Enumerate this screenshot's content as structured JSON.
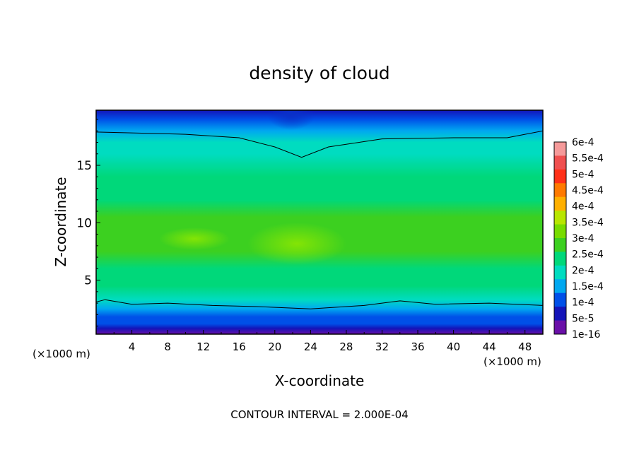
{
  "chart_data": {
    "type": "heatmap",
    "title": "density of cloud",
    "xlabel": "X-coordinate",
    "ylabel": "Z-coordinate",
    "x_unit_left": "(×1000 m)",
    "x_unit_right": "(×1000 m)",
    "footer": "CONTOUR INTERVAL = 2.000E-04",
    "xlim": [
      0,
      50
    ],
    "ylim": [
      0.3,
      19.8
    ],
    "x_ticks": [
      "4",
      "8",
      "12",
      "16",
      "20",
      "24",
      "28",
      "32",
      "36",
      "40",
      "44",
      "48"
    ],
    "y_ticks": [
      "5",
      "10",
      "15"
    ],
    "colorbar": {
      "labels": [
        "6e-4",
        "5.5e-4",
        "5e-4",
        "4.5e-4",
        "4e-4",
        "3.5e-4",
        "3e-4",
        "2.5e-4",
        "2e-4",
        "1.5e-4",
        "1e-4",
        "5e-5",
        "1e-16"
      ],
      "colors": [
        "#f59a9a",
        "#f05050",
        "#ff3018",
        "#ff7a00",
        "#ffb000",
        "#b8e600",
        "#78dc00",
        "#3cd020",
        "#00d87a",
        "#00dcc0",
        "#00a8f0",
        "#0050e8",
        "#1414b8",
        "#6a10a8"
      ]
    },
    "field": {
      "z_levels": [
        0.3,
        0.8,
        1.2,
        1.8,
        2.5,
        3.3,
        4.5,
        6,
        7.5,
        9,
        10.5,
        12,
        14,
        16,
        17,
        18,
        19,
        19.8
      ],
      "values": [
        3e-05,
        6e-05,
        0.0001,
        0.00013,
        0.00017,
        0.0002,
        0.00025,
        0.00028,
        0.00031,
        0.00031,
        0.0003,
        0.00029,
        0.00026,
        0.00023,
        0.0002,
        0.00017,
        0.00012,
        8e-05
      ]
    },
    "contours": [
      {
        "level": "2.000E-04 (upper)",
        "z_at_x": [
          [
            0,
            17.9
          ],
          [
            10,
            17.7
          ],
          [
            16,
            17.4
          ],
          [
            20,
            16.6
          ],
          [
            23,
            15.7
          ],
          [
            26,
            16.6
          ],
          [
            32,
            17.3
          ],
          [
            40,
            17.4
          ],
          [
            46,
            17.4
          ],
          [
            50,
            18.0
          ]
        ]
      },
      {
        "level": "2.000E-04 (lower)",
        "z_at_x": [
          [
            0,
            3.1
          ],
          [
            1,
            3.3
          ],
          [
            4,
            2.9
          ],
          [
            8,
            3.0
          ],
          [
            13,
            2.8
          ],
          [
            18,
            2.7
          ],
          [
            24,
            2.5
          ],
          [
            30,
            2.8
          ],
          [
            34,
            3.2
          ],
          [
            38,
            2.9
          ],
          [
            44,
            3.0
          ],
          [
            50,
            2.8
          ]
        ]
      }
    ]
  }
}
